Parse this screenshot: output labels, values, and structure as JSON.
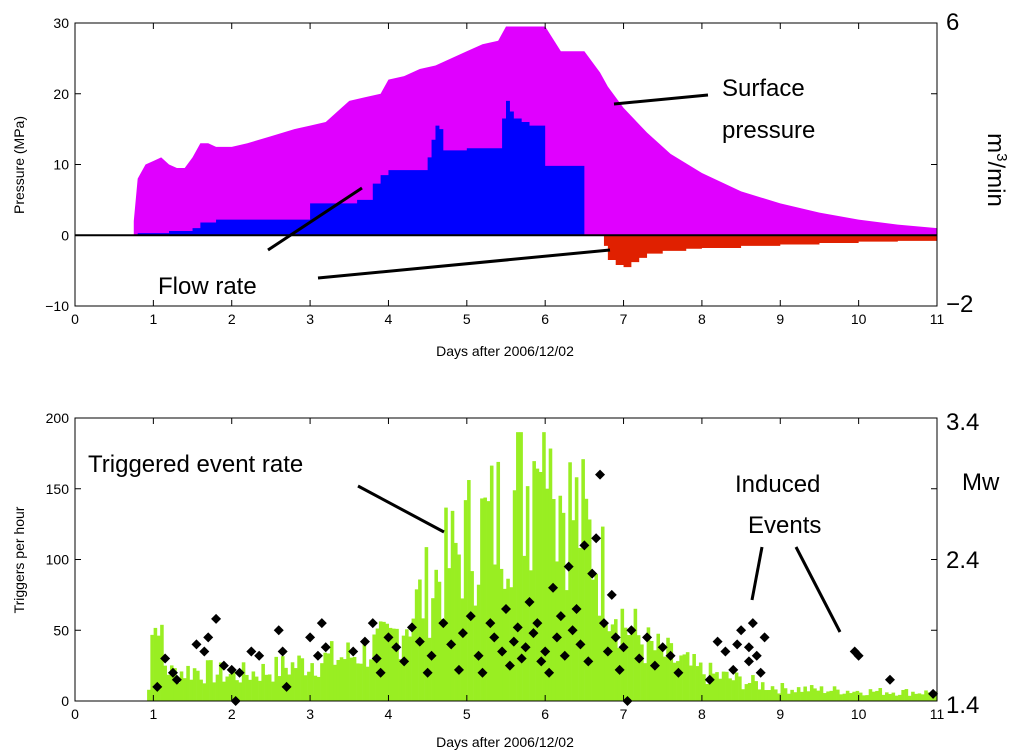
{
  "chart_data": [
    {
      "type": "area",
      "xlabel": "Days after 2006/12/02",
      "ylabel": "Pressure (MPa)",
      "xlim": [
        0,
        11
      ],
      "ylim": [
        -10,
        30
      ],
      "xticks": [
        "0",
        "1",
        "2",
        "3",
        "4",
        "5",
        "6",
        "7",
        "8",
        "9",
        "10",
        "11"
      ],
      "yticks": [
        "−10",
        "0",
        "10",
        "20",
        "30"
      ],
      "right_axis": {
        "label_base": "m",
        "label_sup": "3",
        "label_rest": "/min",
        "ticks": [
          "6",
          "−2"
        ]
      },
      "annotations": {
        "surface_pressure_line1": "Surface",
        "surface_pressure_line2": "pressure",
        "flow_rate": "Flow rate"
      },
      "colors": {
        "pressure": "#e000ff",
        "injection": "#0000ff",
        "flowback": "#e02000"
      },
      "series": [
        {
          "name": "Surface pressure",
          "x": [
            0.75,
            0.8,
            0.9,
            1.0,
            1.1,
            1.2,
            1.3,
            1.4,
            1.5,
            1.6,
            1.7,
            1.8,
            2.0,
            2.2,
            2.5,
            2.8,
            3.0,
            3.2,
            3.4,
            3.5,
            3.7,
            3.9,
            4.0,
            4.2,
            4.4,
            4.6,
            4.8,
            5.0,
            5.2,
            5.4,
            5.5,
            5.6,
            5.8,
            6.0,
            6.2,
            6.3,
            6.5,
            6.7,
            6.8,
            7.0,
            7.3,
            7.6,
            8.0,
            8.5,
            9.0,
            9.5,
            10.0,
            10.5,
            11.0
          ],
          "values": [
            2,
            8,
            10,
            10.5,
            11,
            10,
            9.5,
            9.5,
            11,
            13,
            13,
            12.5,
            12.5,
            13,
            14,
            15,
            15.5,
            16,
            18,
            19,
            19.5,
            20,
            22,
            22.5,
            23.5,
            24,
            25,
            26,
            27,
            27.5,
            29.5,
            29.5,
            29.5,
            29.5,
            26,
            26,
            26,
            23,
            21,
            18,
            14.5,
            11.5,
            8.8,
            6.2,
            4.5,
            3.2,
            2.2,
            1.5,
            1
          ]
        },
        {
          "name": "Injection flow rate",
          "x": [
            0.75,
            0.8,
            1.0,
            1.2,
            1.4,
            1.5,
            1.6,
            1.8,
            2.0,
            2.5,
            2.9,
            3.0,
            3.3,
            3.5,
            3.6,
            3.7,
            3.8,
            3.9,
            4.0,
            4.4,
            4.5,
            4.55,
            4.6,
            4.65,
            4.7,
            5.0,
            5.4,
            5.45,
            5.5,
            5.55,
            5.6,
            5.7,
            5.8,
            6.0,
            6.4,
            6.45,
            6.5
          ],
          "values": [
            0,
            0.3,
            0.3,
            0.6,
            0.6,
            1.0,
            1.8,
            2.2,
            2.2,
            2.2,
            2.2,
            4.5,
            4.5,
            4.5,
            5.0,
            5.0,
            7.3,
            8.5,
            9.2,
            9.2,
            11.0,
            13.5,
            15.5,
            15.0,
            12.0,
            12.3,
            12.3,
            16.5,
            19.0,
            17.5,
            16.5,
            16.0,
            15.5,
            9.8,
            9.8,
            9.8,
            0
          ]
        },
        {
          "name": "Flowback",
          "x": [
            6.75,
            6.8,
            6.9,
            7.0,
            7.1,
            7.2,
            7.3,
            7.5,
            7.8,
            8.0,
            8.5,
            9.0,
            9.5,
            10.0,
            10.5,
            11.0
          ],
          "values": [
            -1.5,
            -3.5,
            -4.2,
            -4.5,
            -3.8,
            -3.2,
            -2.6,
            -2.2,
            -1.9,
            -1.8,
            -1.5,
            -1.3,
            -1.1,
            -0.9,
            -0.8,
            -0.7
          ]
        }
      ]
    },
    {
      "type": "bar",
      "xlabel": "Days after 2006/12/02",
      "ylabel": "Triggers per hour",
      "xlim": [
        0,
        11
      ],
      "ylim": [
        0,
        200
      ],
      "xticks": [
        "0",
        "1",
        "2",
        "3",
        "4",
        "5",
        "6",
        "7",
        "8",
        "9",
        "10",
        "11"
      ],
      "yticks": [
        "0",
        "50",
        "100",
        "150",
        "200"
      ],
      "right_axis": {
        "label": "Mw",
        "ticks": [
          "3.4",
          "2.4",
          "1.4"
        ],
        "range": [
          1.4,
          3.4
        ]
      },
      "annotations": {
        "triggered_event_rate": "Triggered event rate",
        "induced_events_line1": "Induced",
        "induced_events_line2": "Events"
      },
      "colors": {
        "bars": "#99ee22",
        "events": "#000000"
      },
      "rate_profile": {
        "x": [
          0.9,
          1.0,
          1.2,
          1.5,
          2.0,
          2.5,
          3.0,
          3.5,
          4.0,
          4.5,
          5.0,
          5.3,
          5.6,
          5.8,
          6.0,
          6.2,
          6.5,
          6.8,
          7.0,
          7.3,
          7.6,
          8.0,
          8.5,
          9.0,
          10.0,
          11.0
        ],
        "values": [
          0,
          40,
          20,
          22,
          18,
          22,
          28,
          32,
          42,
          80,
          115,
          125,
          145,
          155,
          165,
          145,
          120,
          80,
          55,
          38,
          30,
          20,
          14,
          9,
          7,
          6
        ]
      },
      "event_points": [
        {
          "x": 1.05,
          "mw": 1.5
        },
        {
          "x": 1.15,
          "mw": 1.7
        },
        {
          "x": 1.25,
          "mw": 1.6
        },
        {
          "x": 1.3,
          "mw": 1.55
        },
        {
          "x": 1.55,
          "mw": 1.8
        },
        {
          "x": 1.65,
          "mw": 1.75
        },
        {
          "x": 1.7,
          "mw": 1.85
        },
        {
          "x": 1.8,
          "mw": 1.98
        },
        {
          "x": 1.9,
          "mw": 1.65
        },
        {
          "x": 2.0,
          "mw": 1.62
        },
        {
          "x": 2.05,
          "mw": 1.4
        },
        {
          "x": 2.1,
          "mw": 1.6
        },
        {
          "x": 2.25,
          "mw": 1.75
        },
        {
          "x": 2.35,
          "mw": 1.72
        },
        {
          "x": 2.6,
          "mw": 1.9
        },
        {
          "x": 2.65,
          "mw": 1.75
        },
        {
          "x": 2.7,
          "mw": 1.5
        },
        {
          "x": 3.0,
          "mw": 1.85
        },
        {
          "x": 3.1,
          "mw": 1.72
        },
        {
          "x": 3.2,
          "mw": 1.78
        },
        {
          "x": 3.15,
          "mw": 1.95
        },
        {
          "x": 3.55,
          "mw": 1.75
        },
        {
          "x": 3.7,
          "mw": 1.82
        },
        {
          "x": 3.8,
          "mw": 1.95
        },
        {
          "x": 3.85,
          "mw": 1.7
        },
        {
          "x": 3.9,
          "mw": 1.6
        },
        {
          "x": 4.0,
          "mw": 1.85
        },
        {
          "x": 4.1,
          "mw": 1.78
        },
        {
          "x": 4.2,
          "mw": 1.68
        },
        {
          "x": 4.3,
          "mw": 1.92
        },
        {
          "x": 4.4,
          "mw": 1.82
        },
        {
          "x": 4.5,
          "mw": 1.6
        },
        {
          "x": 4.55,
          "mw": 1.72
        },
        {
          "x": 4.7,
          "mw": 1.95
        },
        {
          "x": 4.8,
          "mw": 1.8
        },
        {
          "x": 4.9,
          "mw": 1.62
        },
        {
          "x": 4.95,
          "mw": 1.88
        },
        {
          "x": 5.05,
          "mw": 2.0
        },
        {
          "x": 5.15,
          "mw": 1.72
        },
        {
          "x": 5.2,
          "mw": 1.6
        },
        {
          "x": 5.3,
          "mw": 1.95
        },
        {
          "x": 5.35,
          "mw": 1.85
        },
        {
          "x": 5.45,
          "mw": 1.75
        },
        {
          "x": 5.5,
          "mw": 2.05
        },
        {
          "x": 5.55,
          "mw": 1.65
        },
        {
          "x": 5.6,
          "mw": 1.82
        },
        {
          "x": 5.65,
          "mw": 1.92
        },
        {
          "x": 5.7,
          "mw": 1.7
        },
        {
          "x": 5.75,
          "mw": 1.78
        },
        {
          "x": 5.8,
          "mw": 2.1
        },
        {
          "x": 5.85,
          "mw": 1.88
        },
        {
          "x": 5.9,
          "mw": 1.95
        },
        {
          "x": 5.95,
          "mw": 1.68
        },
        {
          "x": 6.0,
          "mw": 1.75
        },
        {
          "x": 6.05,
          "mw": 1.6
        },
        {
          "x": 6.1,
          "mw": 2.2
        },
        {
          "x": 6.15,
          "mw": 1.85
        },
        {
          "x": 6.2,
          "mw": 2.0
        },
        {
          "x": 6.25,
          "mw": 1.72
        },
        {
          "x": 6.3,
          "mw": 2.35
        },
        {
          "x": 6.35,
          "mw": 1.9
        },
        {
          "x": 6.4,
          "mw": 2.05
        },
        {
          "x": 6.45,
          "mw": 1.8
        },
        {
          "x": 6.5,
          "mw": 2.5
        },
        {
          "x": 6.55,
          "mw": 1.68
        },
        {
          "x": 6.6,
          "mw": 2.3
        },
        {
          "x": 6.65,
          "mw": 2.55
        },
        {
          "x": 6.7,
          "mw": 3.0
        },
        {
          "x": 6.75,
          "mw": 1.95
        },
        {
          "x": 6.8,
          "mw": 1.75
        },
        {
          "x": 6.85,
          "mw": 2.15
        },
        {
          "x": 6.9,
          "mw": 1.85
        },
        {
          "x": 6.95,
          "mw": 1.62
        },
        {
          "x": 7.0,
          "mw": 1.78
        },
        {
          "x": 7.05,
          "mw": 1.4
        },
        {
          "x": 7.1,
          "mw": 1.9
        },
        {
          "x": 7.2,
          "mw": 1.7
        },
        {
          "x": 7.3,
          "mw": 1.85
        },
        {
          "x": 7.4,
          "mw": 1.65
        },
        {
          "x": 7.5,
          "mw": 1.78
        },
        {
          "x": 7.6,
          "mw": 1.72
        },
        {
          "x": 7.7,
          "mw": 1.6
        },
        {
          "x": 8.1,
          "mw": 1.55
        },
        {
          "x": 8.2,
          "mw": 1.82
        },
        {
          "x": 8.3,
          "mw": 1.75
        },
        {
          "x": 8.4,
          "mw": 1.62
        },
        {
          "x": 8.5,
          "mw": 1.9
        },
        {
          "x": 8.6,
          "mw": 1.68
        },
        {
          "x": 8.65,
          "mw": 1.95
        },
        {
          "x": 8.7,
          "mw": 1.72
        },
        {
          "x": 8.75,
          "mw": 1.6
        },
        {
          "x": 8.8,
          "mw": 1.85
        },
        {
          "x": 8.45,
          "mw": 1.8
        },
        {
          "x": 8.6,
          "mw": 1.78
        },
        {
          "x": 9.95,
          "mw": 1.75
        },
        {
          "x": 10.0,
          "mw": 1.72
        },
        {
          "x": 10.4,
          "mw": 1.55
        },
        {
          "x": 10.95,
          "mw": 1.45
        }
      ]
    }
  ]
}
